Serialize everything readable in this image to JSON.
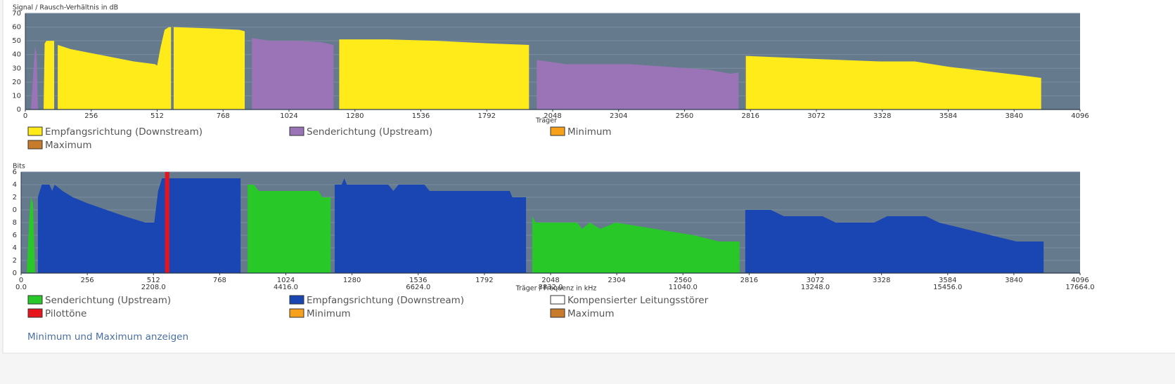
{
  "chart_data": [
    {
      "type": "area",
      "title": "Signal / Rausch-Verhältnis in dB",
      "xlabel": "Träger",
      "xlim": [
        0,
        4096
      ],
      "xticks": [
        0,
        256,
        512,
        768,
        1024,
        1280,
        1536,
        1792,
        2048,
        2304,
        2560,
        2816,
        3072,
        3328,
        3584,
        3840,
        4096
      ],
      "ylim": [
        0,
        70
      ],
      "yticks": [
        0,
        10,
        20,
        30,
        40,
        50,
        60,
        70
      ],
      "grid": true,
      "plot_color": "#667a8e",
      "series": [
        {
          "name": "Empfangsrichtung (Downstream)",
          "color": "#ffeb1a",
          "x": [
            71,
            75,
            82,
            112,
            null,
            126,
            175,
            257,
            339,
            421,
            503,
            512,
            525,
            541,
            557,
            566,
            null,
            576,
            721,
            831,
            852,
            null,
            1219,
            1404,
            1596,
            1814,
            1956,
            null,
            2798,
            3044,
            3317,
            3454,
            3590,
            3727,
            3863,
            3945
          ],
          "values": [
            0,
            48,
            50,
            50,
            null,
            47,
            44,
            41,
            38,
            35,
            33,
            32,
            45,
            58,
            60,
            60,
            null,
            60,
            59,
            58,
            57,
            null,
            51,
            51,
            50,
            48,
            47,
            null,
            39,
            37,
            35,
            35,
            31,
            28,
            25,
            23
          ]
        },
        {
          "name": "Senderichtung (Upstream)",
          "color": "#9b74b8",
          "x": [
            22,
            32,
            38,
            44,
            49,
            null,
            880,
            950,
            1050,
            1150,
            1197,
            null,
            1986,
            2100,
            2250,
            2350,
            2500,
            2650,
            2740,
            2770
          ],
          "values": [
            0,
            30,
            46,
            40,
            0,
            null,
            52,
            50,
            50,
            49,
            47,
            null,
            36,
            33,
            33,
            33,
            31,
            29,
            26,
            27
          ]
        },
        {
          "name": "Minimum",
          "color": "#f7a11a",
          "x": [],
          "values": []
        },
        {
          "name": "Maximum",
          "color": "#c87b2a",
          "x": [],
          "values": []
        }
      ]
    },
    {
      "type": "area",
      "title": "Bits",
      "xlabel": "Träger / Frequenz in kHz",
      "xlim": [
        0,
        4096
      ],
      "xticks": [
        0,
        256,
        512,
        768,
        1024,
        1280,
        1536,
        1792,
        2048,
        2304,
        2560,
        2816,
        3072,
        3328,
        3584,
        3840,
        4096
      ],
      "x2ticks": [
        {
          "value": 0,
          "label": "0.0"
        },
        {
          "value": 512,
          "label": "2208.0"
        },
        {
          "value": 1024,
          "label": "4416.0"
        },
        {
          "value": 1536,
          "label": "6624.0"
        },
        {
          "value": 2048,
          "label": "8832.0"
        },
        {
          "value": 2560,
          "label": "11040.0"
        },
        {
          "value": 3072,
          "label": "13248.0"
        },
        {
          "value": 3584,
          "label": "15456.0"
        },
        {
          "value": 4096,
          "label": "17664.0"
        }
      ],
      "ylim": [
        0,
        16
      ],
      "yticks": [
        0,
        2,
        4,
        6,
        8,
        {
          "value": 10,
          "label": "0"
        },
        {
          "value": 12,
          "label": "2"
        },
        {
          "value": 14,
          "label": "4"
        },
        {
          "value": 16,
          "label": "6"
        }
      ],
      "grid": true,
      "plot_color": "#667a8e",
      "series": [
        {
          "name": "Senderichtung (Upstream)",
          "color": "#27c827",
          "x": [
            22,
            32,
            38,
            46,
            54,
            null,
            876,
            900,
            920,
            1150,
            1165,
            1197,
            null,
            1977,
            1990,
            2150,
            2170,
            2200,
            2240,
            2300,
            2450,
            2600,
            2700,
            2779
          ],
          "values": [
            0,
            9,
            12,
            11,
            0,
            null,
            14,
            14,
            13,
            13,
            12,
            12,
            null,
            9,
            8,
            8,
            7,
            8,
            7,
            8,
            7,
            6,
            5,
            5
          ]
        },
        {
          "name": "Empfangsrichtung (Downstream)",
          "color": "#1a46b4",
          "x": [
            65,
            80,
            110,
            120,
            130,
            160,
            200,
            260,
            330,
            400,
            480,
            515,
            530,
            545,
            849,
            null,
            1213,
            1240,
            1250,
            1260,
            1420,
            1440,
            1460,
            1560,
            1580,
            1620,
            1700,
            1890,
            1900,
            1953,
            null,
            2801,
            2900,
            2950,
            3100,
            3150,
            3300,
            3350,
            3500,
            3550,
            3650,
            3750,
            3850,
            3955
          ],
          "values": [
            12,
            14,
            14,
            13,
            14,
            13,
            12,
            11,
            10,
            9,
            8,
            8,
            13,
            15,
            15,
            null,
            14,
            14,
            15,
            14,
            14,
            13,
            14,
            14,
            13,
            13,
            13,
            13,
            12,
            12,
            null,
            10,
            10,
            9,
            9,
            8,
            8,
            9,
            9,
            8,
            7,
            6,
            5,
            5
          ]
        },
        {
          "name": "Kompensierter Leitungsstörer",
          "color": "#ffffff",
          "x": [],
          "values": []
        },
        {
          "name": "Pilottöne",
          "color": "#e8141b",
          "style": "bar",
          "x": [
            565
          ],
          "values": [
            16
          ]
        },
        {
          "name": "Minimum",
          "color": "#f7a11a",
          "x": [],
          "values": []
        },
        {
          "name": "Maximum",
          "color": "#c87b2a",
          "x": [],
          "values": []
        }
      ]
    }
  ],
  "footer_link": "Minimum und Maximum anzeigen"
}
